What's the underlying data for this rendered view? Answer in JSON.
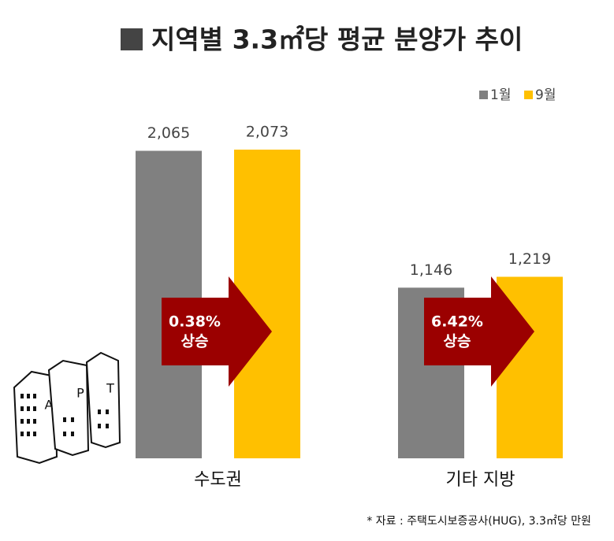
{
  "chart_data": {
    "type": "bar",
    "title": "지역별 3.3㎡당 평균 분양가 추이",
    "categories": [
      "수도권",
      "기타 지방"
    ],
    "series": [
      {
        "name": "1월",
        "color": "#808080",
        "values": [
          2065,
          1146
        ],
        "value_labels": [
          "2,065",
          "1,146"
        ]
      },
      {
        "name": "9월",
        "color": "#ffc000",
        "values": [
          2073,
          1219
        ],
        "value_labels": [
          "2,073",
          "1,219"
        ]
      }
    ],
    "annotations": [
      {
        "lines": [
          "0.38%",
          "상승"
        ]
      },
      {
        "lines": [
          "6.42%",
          "상승"
        ]
      }
    ],
    "annotation_color": "#9b0000",
    "source": "* 자료 :  주택도시보증공사(HUG), 3.3㎡당 만원",
    "icon_letters": [
      "A",
      "P",
      "T"
    ]
  }
}
